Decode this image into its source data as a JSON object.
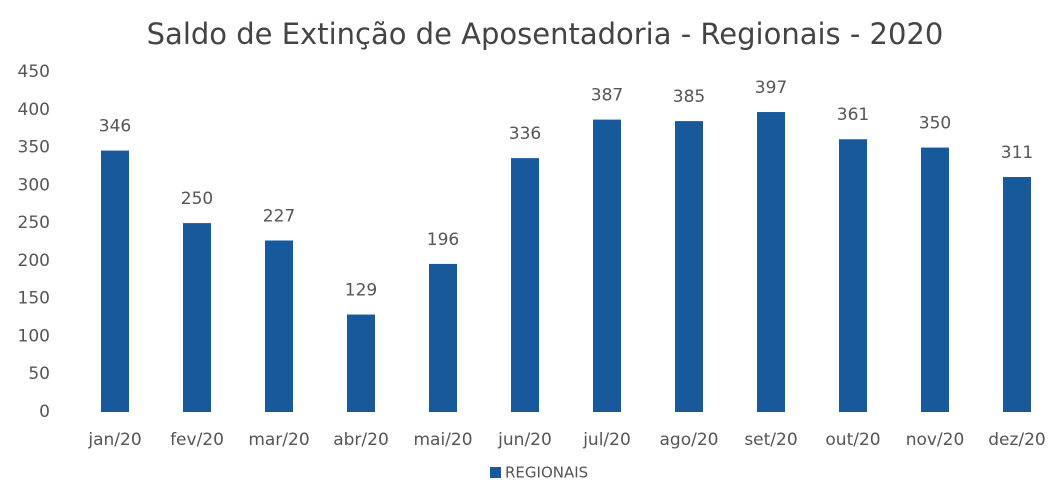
{
  "chart_data": {
    "type": "bar",
    "title": "Saldo de Extinção de Aposentadoria - Regionais - 2020",
    "categories": [
      "jan/20",
      "fev/20",
      "mar/20",
      "abr/20",
      "mai/20",
      "jun/20",
      "jul/20",
      "ago/20",
      "set/20",
      "out/20",
      "nov/20",
      "dez/20"
    ],
    "series": [
      {
        "name": "REGIONAIS",
        "color": "#17599b",
        "values": [
          346,
          250,
          227,
          129,
          196,
          336,
          387,
          385,
          397,
          361,
          350,
          311
        ]
      }
    ],
    "ylim": [
      0,
      450
    ],
    "yticks": [
      0,
      50,
      100,
      150,
      200,
      250,
      300,
      350,
      400,
      450
    ],
    "grid": false,
    "legend": "bottom"
  }
}
